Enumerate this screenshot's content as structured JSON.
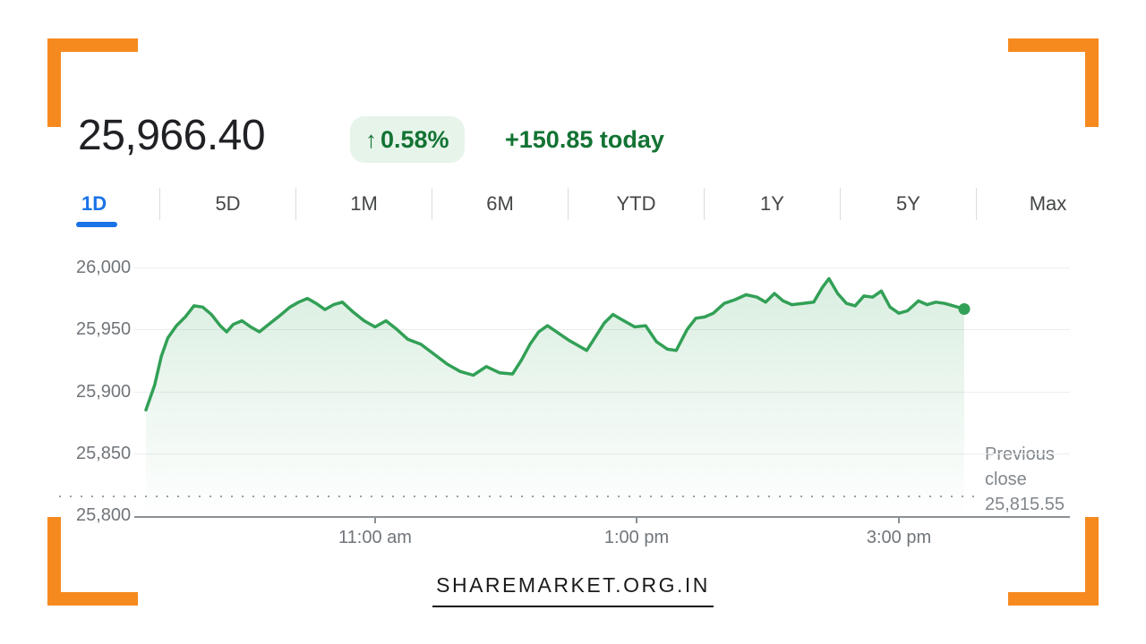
{
  "header": {
    "price": "25,966.40",
    "change_badge": {
      "arrow": "↑",
      "percent": "0.58%"
    },
    "change_text": "+150.85 today"
  },
  "tabs": {
    "items": [
      "1D",
      "5D",
      "1M",
      "6M",
      "YTD",
      "1Y",
      "5Y",
      "Max"
    ],
    "active": "1D"
  },
  "chart_data": {
    "type": "area",
    "series_name": "index-price-intraday",
    "title": "",
    "xlabel": "",
    "ylabel": "",
    "ylim": [
      25800,
      26000
    ],
    "y_tick_values": [
      26000,
      25950,
      25900,
      25850,
      25800
    ],
    "y_tick_labels": [
      "26,000",
      "25,950",
      "25,900",
      "25,850",
      "25,800"
    ],
    "x_domain_minutes": [
      0,
      375
    ],
    "x_tick_minutes": [
      105,
      225,
      345
    ],
    "x_tick_labels": [
      "11:00 am",
      "1:00 pm",
      "3:00 pm"
    ],
    "previous_close": {
      "label_line1": "Previous",
      "label_line2": "close",
      "value_label": "25,815.55",
      "value": 25815.55
    },
    "end_value": 25966.4,
    "minutes": [
      0,
      4,
      7,
      10,
      14,
      18,
      22,
      26,
      30,
      34,
      37,
      40,
      44,
      48,
      52,
      57,
      62,
      66,
      70,
      74,
      78,
      82,
      86,
      90,
      95,
      100,
      105,
      110,
      115,
      120,
      126,
      132,
      138,
      144,
      150,
      156,
      162,
      168,
      172,
      176,
      180,
      184,
      189,
      194,
      199,
      202,
      206,
      210,
      214,
      219,
      224,
      229,
      234,
      239,
      243,
      248,
      252,
      256,
      260,
      265,
      270,
      275,
      280,
      284,
      288,
      292,
      296,
      301,
      306,
      310,
      313,
      317,
      321,
      325,
      329,
      333,
      337,
      341,
      345,
      349,
      354,
      358,
      362,
      366,
      370,
      375
    ],
    "values": [
      25885,
      25905,
      25928,
      25943,
      25953,
      25960,
      25969,
      25968,
      25962,
      25953,
      25948,
      25954,
      25957,
      25952,
      25948,
      25955,
      25962,
      25968,
      25972,
      25975,
      25971,
      25966,
      25970,
      25972,
      25964,
      25957,
      25952,
      25957,
      25950,
      25942,
      25938,
      25930,
      25922,
      25916,
      25913,
      25920,
      25915,
      25914,
      25925,
      25938,
      25948,
      25953,
      25947,
      25941,
      25936,
      25933,
      25944,
      25955,
      25962,
      25957,
      25952,
      25953,
      25940,
      25934,
      25933,
      25950,
      25959,
      25960,
      25963,
      25971,
      25974,
      25978,
      25976,
      25972,
      25979,
      25973,
      25970,
      25971,
      25972,
      25984,
      25991,
      25979,
      25971,
      25969,
      25977,
      25976,
      25981,
      25968,
      25963,
      25965,
      25973,
      25970,
      25972,
      25971,
      25969,
      25966.4
    ],
    "grid": true,
    "legend": "none"
  },
  "footer": {
    "watermark": "SHAREMARKET.ORG.IN"
  },
  "colors": {
    "bracket_orange": "#F68A1F",
    "green_text": "#137333",
    "badge_bg": "#E6F4EA",
    "line_green": "#32A056",
    "active_tab_blue": "#1A73E8",
    "axis_gray": "#70757A"
  }
}
